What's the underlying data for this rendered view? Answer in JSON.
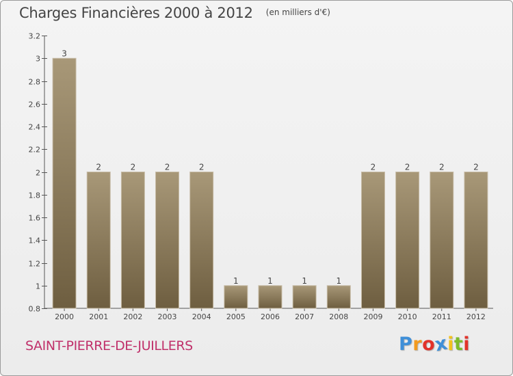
{
  "header": {
    "title": "Charges Financières 2000 à 2012",
    "subtitle": "(en milliers d'€)"
  },
  "chart_data": {
    "type": "bar",
    "categories": [
      "2000",
      "2001",
      "2002",
      "2003",
      "2004",
      "2005",
      "2006",
      "2007",
      "2008",
      "2009",
      "2010",
      "2011",
      "2012"
    ],
    "values": [
      3,
      2,
      2,
      2,
      2,
      1,
      1,
      1,
      1,
      2,
      2,
      2,
      2
    ],
    "data_labels": [
      "3",
      "2",
      "2",
      "2",
      "2",
      "1",
      "1",
      "1",
      "1",
      "2",
      "2",
      "2",
      "2"
    ],
    "ylim": [
      0.8,
      3.2
    ],
    "yticks": [
      0.8,
      1,
      1.2,
      1.4,
      1.6,
      1.8,
      2,
      2.2,
      2.4,
      2.6,
      2.8,
      3,
      3.2
    ],
    "ytick_labels": [
      "0.8",
      "1",
      "1.2",
      "1.4",
      "1.6",
      "1.8",
      "2",
      "2.2",
      "2.4",
      "2.6",
      "2.8",
      "3",
      "3.2"
    ],
    "xlabel": "",
    "ylabel": "",
    "grid": false,
    "legend": "none",
    "bar_color": "#8e7d60",
    "bar_edge_color": "#c8bda8"
  },
  "footer": {
    "commune": "SAINT-PIERRE-DE-JUILLERS",
    "commune_color": "#c0306a",
    "logo_letters": [
      "P",
      "r",
      "o",
      "x",
      "i",
      "t",
      "i"
    ],
    "logo_colors": [
      "#3f8fd8",
      "#f29a1e",
      "#e2322a",
      "#3f8fd8",
      "#f2c21e",
      "#7dbb2a",
      "#e2322a"
    ]
  }
}
